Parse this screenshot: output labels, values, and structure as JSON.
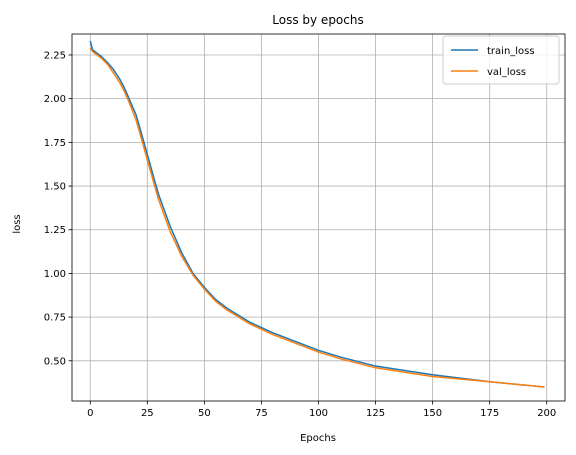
{
  "chart_data": {
    "type": "line",
    "title": "Loss by epochs",
    "xlabel": "Epochs",
    "ylabel": "loss",
    "xlim": [
      -8,
      208
    ],
    "ylim": [
      0.27,
      2.37
    ],
    "xticks": [
      0,
      25,
      50,
      75,
      100,
      125,
      150,
      175,
      200
    ],
    "yticks": [
      0.5,
      0.75,
      1.0,
      1.25,
      1.5,
      1.75,
      2.0,
      2.25
    ],
    "ytick_labels": [
      "0.50",
      "0.75",
      "1.00",
      "1.25",
      "1.50",
      "1.75",
      "2.00",
      "2.25"
    ],
    "grid": true,
    "legend_position": "top-right",
    "series": [
      {
        "name": "train_loss",
        "color": "#1f77b4",
        "x": [
          0,
          1,
          2,
          5,
          8,
          10,
          13,
          15,
          17,
          20,
          22,
          25,
          28,
          30,
          35,
          40,
          45,
          50,
          55,
          60,
          65,
          70,
          75,
          80,
          90,
          100,
          110,
          125,
          150,
          175,
          199
        ],
        "y": [
          2.33,
          2.28,
          2.27,
          2.24,
          2.2,
          2.17,
          2.11,
          2.06,
          2.0,
          1.91,
          1.82,
          1.68,
          1.54,
          1.45,
          1.27,
          1.12,
          1.0,
          0.92,
          0.85,
          0.8,
          0.76,
          0.72,
          0.69,
          0.66,
          0.61,
          0.56,
          0.52,
          0.47,
          0.42,
          0.38,
          0.35
        ]
      },
      {
        "name": "val_loss",
        "color": "#ff7f0e",
        "x": [
          0,
          1,
          2,
          5,
          8,
          10,
          13,
          15,
          17,
          20,
          22,
          25,
          28,
          30,
          35,
          40,
          45,
          50,
          55,
          60,
          65,
          70,
          75,
          80,
          90,
          100,
          110,
          125,
          150,
          175,
          199
        ],
        "y": [
          2.29,
          2.27,
          2.26,
          2.23,
          2.19,
          2.15,
          2.09,
          2.04,
          1.98,
          1.88,
          1.79,
          1.65,
          1.51,
          1.42,
          1.24,
          1.1,
          0.99,
          0.91,
          0.84,
          0.79,
          0.75,
          0.71,
          0.68,
          0.65,
          0.6,
          0.55,
          0.51,
          0.46,
          0.41,
          0.38,
          0.35
        ]
      }
    ]
  }
}
